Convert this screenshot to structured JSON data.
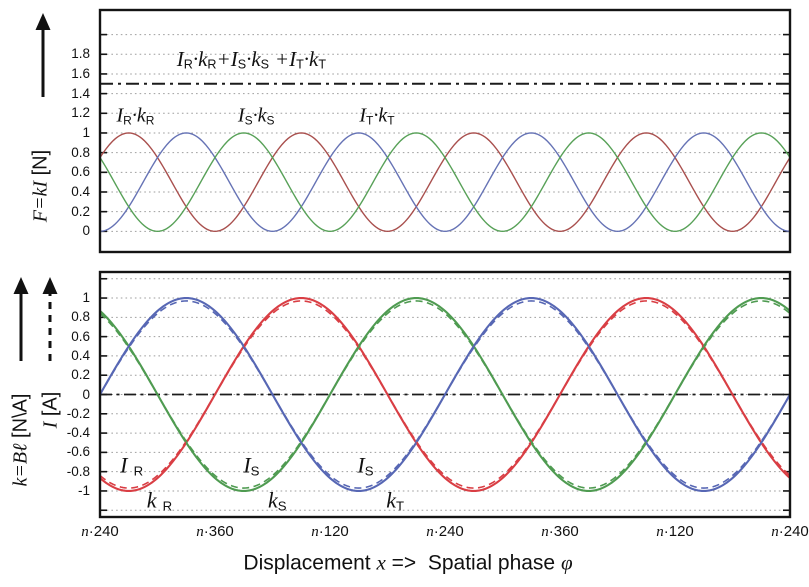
{
  "figure": {
    "xaxis_title_text": "Displacement x =>  Spatial phase φ",
    "xaxis_title_segments": [
      [
        "t",
        "Displacement "
      ],
      [
        "v",
        "x"
      ],
      [
        "t",
        " =>  Spatial phase "
      ],
      [
        "v",
        "φ"
      ]
    ],
    "background": "#ffffff",
    "axis_color": "#141414",
    "grid_color": "#9e9e9e"
  },
  "panels": {
    "force": {
      "ylabel_text": "F=kI [N]",
      "ylabel_segments": [
        [
          "v",
          "F=kI"
        ],
        [
          "t",
          " [N]"
        ]
      ]
    },
    "ki": {
      "ylabel_k_text": "k=Bℓ [N\\A]",
      "ylabel_k_segments": [
        [
          "v",
          "k=Bℓ"
        ],
        [
          "t",
          " [N\\A]"
        ]
      ],
      "ylabel_i_text": "I [A]",
      "ylabel_i_segments": [
        [
          "v",
          "I"
        ],
        [
          "t",
          " [A]"
        ]
      ]
    }
  },
  "chart_data": [
    {
      "type": "line",
      "panel": "force",
      "ylabel": "F=kI [N]",
      "x_unit": "deg",
      "x_range": [
        0,
        720
      ],
      "ylim": [
        -0.21,
        2.25
      ],
      "grid": {
        "min": 0,
        "max": 2.0,
        "step": 0.2,
        "style": "dotted"
      },
      "yticks": [
        {
          "v": 1.8,
          "label": "1.8"
        },
        {
          "v": 1.6,
          "label": "1.6"
        },
        {
          "v": 1.4,
          "label": "1.4"
        },
        {
          "v": 1.2,
          "label": "1.2"
        },
        {
          "v": 1.0,
          "label": "1"
        },
        {
          "v": 0.8,
          "label": "0.8"
        },
        {
          "v": 0.6,
          "label": "0.6"
        },
        {
          "v": 0.4,
          "label": "0.4"
        },
        {
          "v": 0.2,
          "label": "0.2"
        },
        {
          "v": 0.0,
          "label": "0"
        }
      ],
      "series": [
        {
          "name": "sum IR·kR+IS·kS+IT·kT",
          "fn": "const",
          "value": 1.5,
          "color": "#1b1b1b",
          "width": 2.0,
          "style": "dashdot",
          "dash": "13 5 3 5"
        },
        {
          "name": "IR·kR",
          "fn": "sin2",
          "phase_deg": -120,
          "amplitude": 1,
          "color": "#a9504e",
          "width": 1.4,
          "style": "solid"
        },
        {
          "name": "IT·kT",
          "fn": "sin2",
          "phase_deg": 0,
          "amplitude": 1,
          "color": "#6673b5",
          "width": 1.4,
          "style": "solid"
        },
        {
          "name": "IS·kS",
          "fn": "sin2",
          "phase_deg": 120,
          "amplitude": 1,
          "color": "#58a158",
          "width": 1.4,
          "style": "solid"
        }
      ],
      "annotations": [
        {
          "name": "sum-label",
          "x_deg": 158,
          "y": 1.74,
          "size": 21,
          "segments": [
            [
              "v",
              "I"
            ],
            [
              "s",
              "R"
            ],
            [
              "v",
              "·k"
            ],
            [
              "s",
              "R"
            ],
            [
              "v",
              "+"
            ],
            [
              "v",
              "I"
            ],
            [
              "s",
              "S"
            ],
            [
              "v",
              "·k"
            ],
            [
              "s",
              "S"
            ],
            [
              "t",
              " "
            ],
            [
              "v",
              "+"
            ],
            [
              "v",
              "I"
            ],
            [
              "s",
              "T"
            ],
            [
              "v",
              "·k"
            ],
            [
              "s",
              "T"
            ]
          ]
        },
        {
          "name": "label-IRkR",
          "x_deg": 37,
          "y": 1.17,
          "size": 20,
          "segments": [
            [
              "v",
              "I"
            ],
            [
              "s",
              "R"
            ],
            [
              "v",
              "·k"
            ],
            [
              "s",
              "R"
            ]
          ]
        },
        {
          "name": "label-ISkS",
          "x_deg": 163,
          "y": 1.17,
          "size": 20,
          "segments": [
            [
              "v",
              "I"
            ],
            [
              "s",
              "S"
            ],
            [
              "v",
              "·k"
            ],
            [
              "s",
              "S"
            ]
          ]
        },
        {
          "name": "label-ITkT",
          "x_deg": 289,
          "y": 1.17,
          "size": 20,
          "segments": [
            [
              "v",
              "I"
            ],
            [
              "s",
              "T"
            ],
            [
              "v",
              "·k"
            ],
            [
              "s",
              "T"
            ]
          ]
        }
      ]
    },
    {
      "type": "line",
      "panel": "ki",
      "ylabel": "k=Bℓ [N\\A] ; I [A]",
      "xlabel": "Displacement x => Spatial phase φ",
      "x_unit": "deg",
      "x_range": [
        0,
        720
      ],
      "ylim": [
        -1.27,
        1.27
      ],
      "grid": {
        "min": -1.2,
        "max": 1.2,
        "step": 0.2,
        "style": "dotted"
      },
      "yticks": [
        {
          "v": 1.0,
          "label": "1"
        },
        {
          "v": 0.8,
          "label": "0.8"
        },
        {
          "v": 0.6,
          "label": "0.6"
        },
        {
          "v": 0.4,
          "label": "0.4"
        },
        {
          "v": 0.2,
          "label": "0.2"
        },
        {
          "v": 0.0,
          "label": "0"
        },
        {
          "v": -0.2,
          "label": "-0.2"
        },
        {
          "v": -0.4,
          "label": "-0.4"
        },
        {
          "v": -0.6,
          "label": "-0.6"
        },
        {
          "v": -0.8,
          "label": "-0.8"
        },
        {
          "v": -1.0,
          "label": "-1"
        }
      ],
      "xticks": [
        {
          "deg": 0,
          "segments": [
            [
              "v",
              "n"
            ],
            [
              "t",
              "·240"
            ]
          ]
        },
        {
          "deg": 120,
          "segments": [
            [
              "v",
              "n"
            ],
            [
              "t",
              "·360"
            ]
          ]
        },
        {
          "deg": 240,
          "segments": [
            [
              "v",
              "n"
            ],
            [
              "t",
              "·120"
            ]
          ]
        },
        {
          "deg": 360,
          "segments": [
            [
              "v",
              "n"
            ],
            [
              "t",
              "·240"
            ]
          ]
        },
        {
          "deg": 480,
          "segments": [
            [
              "v",
              "n"
            ],
            [
              "t",
              "·360"
            ]
          ]
        },
        {
          "deg": 600,
          "segments": [
            [
              "v",
              "n"
            ],
            [
              "t",
              "·120"
            ]
          ]
        },
        {
          "deg": 720,
          "segments": [
            [
              "v",
              "n"
            ],
            [
              "t",
              "·240"
            ]
          ]
        }
      ],
      "series": [
        {
          "name": "zero-line",
          "fn": "const",
          "value": 0,
          "color": "#1b1b1b",
          "width": 1.8,
          "style": "dashdot",
          "dash": "12 4.5 3 4.5"
        },
        {
          "name": "k_R",
          "fn": "sin",
          "phase_deg": -120,
          "amplitude": 1,
          "color": "#d93e44",
          "width": 2.1,
          "style": "solid"
        },
        {
          "name": "k_S",
          "fn": "sin",
          "phase_deg": 120,
          "amplitude": 1,
          "color": "#4f9b51",
          "width": 2.1,
          "style": "solid"
        },
        {
          "name": "k_T",
          "fn": "sin",
          "phase_deg": 0,
          "amplitude": 1,
          "color": "#5767b4",
          "width": 2.1,
          "style": "solid"
        },
        {
          "name": "I_R",
          "fn": "sin",
          "phase_deg": -120,
          "amplitude": 0.97,
          "color": "#d93e44",
          "width": 1.6,
          "style": "dashed",
          "dash": "7 4.5"
        },
        {
          "name": "I_S",
          "fn": "sin",
          "phase_deg": 120,
          "amplitude": 0.97,
          "color": "#4f9b51",
          "width": 1.6,
          "style": "dashed",
          "dash": "7 4.5"
        },
        {
          "name": "I_T",
          "fn": "sin",
          "phase_deg": 0,
          "amplitude": 0.97,
          "color": "#5767b4",
          "width": 1.6,
          "style": "dashed",
          "dash": "7 4.5"
        }
      ],
      "annotations": [
        {
          "name": "label-IR",
          "x_deg": 33,
          "y": -0.74,
          "size": 22,
          "segments": [
            [
              "v",
              "I"
            ],
            [
              "t",
              " "
            ],
            [
              "s",
              "R"
            ]
          ]
        },
        {
          "name": "label-kR",
          "x_deg": 62,
          "y": -1.1,
          "size": 22,
          "segments": [
            [
              "v",
              "k"
            ],
            [
              "t",
              " "
            ],
            [
              "s",
              "R"
            ]
          ]
        },
        {
          "name": "label-IS",
          "x_deg": 158,
          "y": -0.74,
          "size": 22,
          "segments": [
            [
              "v",
              "I"
            ],
            [
              "s",
              "S"
            ]
          ]
        },
        {
          "name": "label-kS",
          "x_deg": 185,
          "y": -1.1,
          "size": 22,
          "segments": [
            [
              "v",
              "k"
            ],
            [
              "s",
              "S"
            ]
          ]
        },
        {
          "name": "label-IS2",
          "x_deg": 277,
          "y": -0.74,
          "size": 22,
          "segments": [
            [
              "v",
              "I"
            ],
            [
              "s",
              "S"
            ]
          ]
        },
        {
          "name": "label-kT",
          "x_deg": 308,
          "y": -1.1,
          "size": 22,
          "segments": [
            [
              "v",
              "k"
            ],
            [
              "s",
              "T"
            ]
          ]
        }
      ]
    }
  ]
}
